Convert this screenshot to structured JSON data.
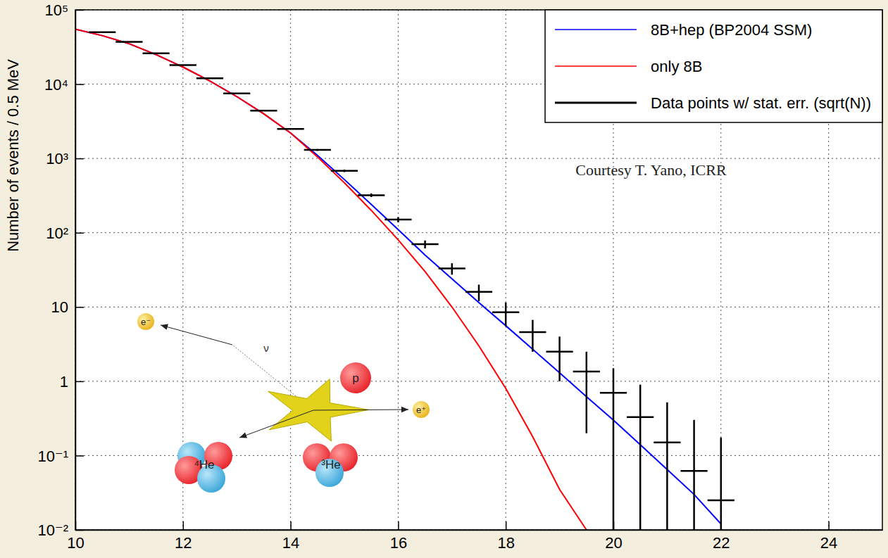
{
  "chart_data": {
    "type": "line",
    "ylabel": "Number of events / 0.5 MeV",
    "log": "y",
    "grid": true,
    "legend": "top-right",
    "xlim": [
      10,
      25
    ],
    "xticks": [
      10,
      12,
      14,
      16,
      18,
      20,
      22,
      24
    ],
    "ylim": [
      0.01,
      100000
    ],
    "yticks": [
      {
        "value": 0.01,
        "label": "10⁻²"
      },
      {
        "value": 0.1,
        "label": "10⁻¹"
      },
      1,
      10,
      {
        "value": 100,
        "label": "10²"
      },
      {
        "value": 1000,
        "label": "10³"
      },
      {
        "value": 10000,
        "label": "10⁴"
      },
      {
        "value": 100000,
        "label": "10⁵"
      }
    ],
    "annotations": [
      "Courtesy T. Yano, ICRR",
      "e⁻",
      "ν",
      "p",
      "e⁺",
      "⁴He",
      "³He"
    ],
    "series": [
      {
        "name": "8B+hep (BP2004 SSM)",
        "type": "line",
        "color": "#0000ff",
        "x": [
          10,
          10.5,
          11,
          11.5,
          12,
          12.5,
          13,
          13.5,
          14,
          14.5,
          15,
          15.5,
          16,
          16.5,
          17,
          17.5,
          18,
          18.5,
          19,
          19.5,
          20,
          20.5,
          21,
          21.5,
          22
        ],
        "values": [
          55000,
          45000,
          35000,
          25000,
          17000,
          11000,
          6800,
          4000,
          2200,
          1100,
          520,
          240,
          110,
          50,
          24,
          11.5,
          5.6,
          2.7,
          1.3,
          0.62,
          0.3,
          0.14,
          0.065,
          0.03,
          0.012
        ]
      },
      {
        "name": "only 8B",
        "type": "line",
        "color": "#ff0000",
        "x": [
          10,
          10.5,
          11,
          11.5,
          12,
          12.5,
          13,
          13.5,
          14,
          14.5,
          15,
          15.5,
          16,
          16.5,
          17,
          17.5,
          18,
          18.5,
          19,
          19.5
        ],
        "values": [
          55000,
          45000,
          35000,
          25000,
          17000,
          11000,
          6800,
          4000,
          2200,
          1050,
          470,
          200,
          80,
          30,
          10,
          3,
          0.8,
          0.18,
          0.035,
          0.01
        ]
      },
      {
        "name": "Data points w/ stat. err. (sqrt(N))",
        "type": "errorbar",
        "color": "#000000",
        "x": [
          10.5,
          11,
          11.5,
          12,
          12.5,
          13,
          13.5,
          14,
          14.5,
          15,
          15.5,
          16,
          16.5,
          17,
          17.5,
          18,
          18.5,
          19,
          19.5,
          20,
          20.5,
          21,
          21.5,
          22
        ],
        "values": [
          50000,
          37000,
          26000,
          18000,
          12000,
          7500,
          4400,
          2500,
          1300,
          680,
          320,
          150,
          70,
          33,
          16,
          8.5,
          4.6,
          2.5,
          1.35,
          0.7,
          0.33,
          0.15,
          0.062,
          0.025
        ],
        "errors": [
          224,
          192,
          161,
          134,
          110,
          87,
          66,
          50,
          36,
          26,
          18,
          12,
          8.5,
          5.8,
          4,
          3,
          2.1,
          1.5,
          1.15,
          0.8,
          0.57,
          0.37,
          0.24,
          0.15
        ],
        "x_errors": [
          0.25,
          0.25,
          0.25,
          0.25,
          0.25,
          0.25,
          0.25,
          0.25,
          0.25,
          0.25,
          0.25,
          0.25,
          0.25,
          0.25,
          0.25,
          0.25,
          0.25,
          0.25,
          0.25,
          0.25,
          0.25,
          0.25,
          0.25,
          0.25
        ]
      }
    ]
  }
}
